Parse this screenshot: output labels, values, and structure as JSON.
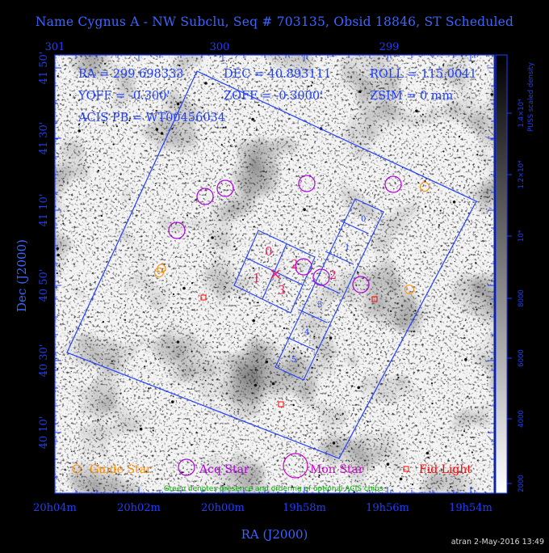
{
  "title": "Name Cygnus A - NW Subclu, Seq # 703135, Obsid 18846, ST Scheduled",
  "info": {
    "ra": "RA = 299.698333",
    "dec": "DEC = 40.893111",
    "roll": "ROLL = 115.0041",
    "yoff": "YOFF = -0.300'",
    "zoff": "ZOFF = -0.3000'",
    "zsim": "ZSIM = 0 mm",
    "acis": "ACIS PB = WT00456034"
  },
  "chart_data": {
    "type": "scatter",
    "xlabel": "RA (J2000)",
    "ylabel": "Dec (J2000)",
    "x_ticks_bottom": [
      "20h04m",
      "20h02m",
      "20h00m",
      "19h58m",
      "19h56m",
      "19h54m"
    ],
    "x_ticks_top": [
      "301",
      "300",
      "299"
    ],
    "y_ticks": [
      "41 50'",
      "41 30'",
      "41 10'",
      "40 50'",
      "40 30'",
      "40 10'"
    ],
    "colorbar": {
      "label": "PUSS scaled density",
      "ticks": [
        "2000",
        "4000",
        "6000",
        "8000",
        "10⁴",
        "1.2×10⁴",
        "1.4×10⁴"
      ]
    },
    "acis_chips": [
      "0",
      "1",
      "2",
      "3",
      "4",
      "5"
    ],
    "aimpoint_chips": [
      "0",
      "1",
      "2",
      "3"
    ],
    "markers": {
      "guide_stars": 4,
      "acq_stars": 8,
      "mon_stars": 0,
      "fid_lights": 3
    },
    "legend": [
      {
        "label": "Guide Star",
        "color": "#ff8c00"
      },
      {
        "label": "Acq Star",
        "color": "#b000e0"
      },
      {
        "label": "Mon Star",
        "color": "#d000d0"
      },
      {
        "label": "Fid Light",
        "color": "#ff0000"
      }
    ],
    "note": "Green denotes presence and ordering of optional ACIS chips."
  },
  "colors": {
    "frame": "#1f3fff",
    "guide": "#ff8c00",
    "acq": "#b000e0",
    "fid": "#ff0000",
    "chip_label": "#ff1060",
    "note": "#00cc00"
  },
  "footer": "atran   2-May-2016 13:49"
}
